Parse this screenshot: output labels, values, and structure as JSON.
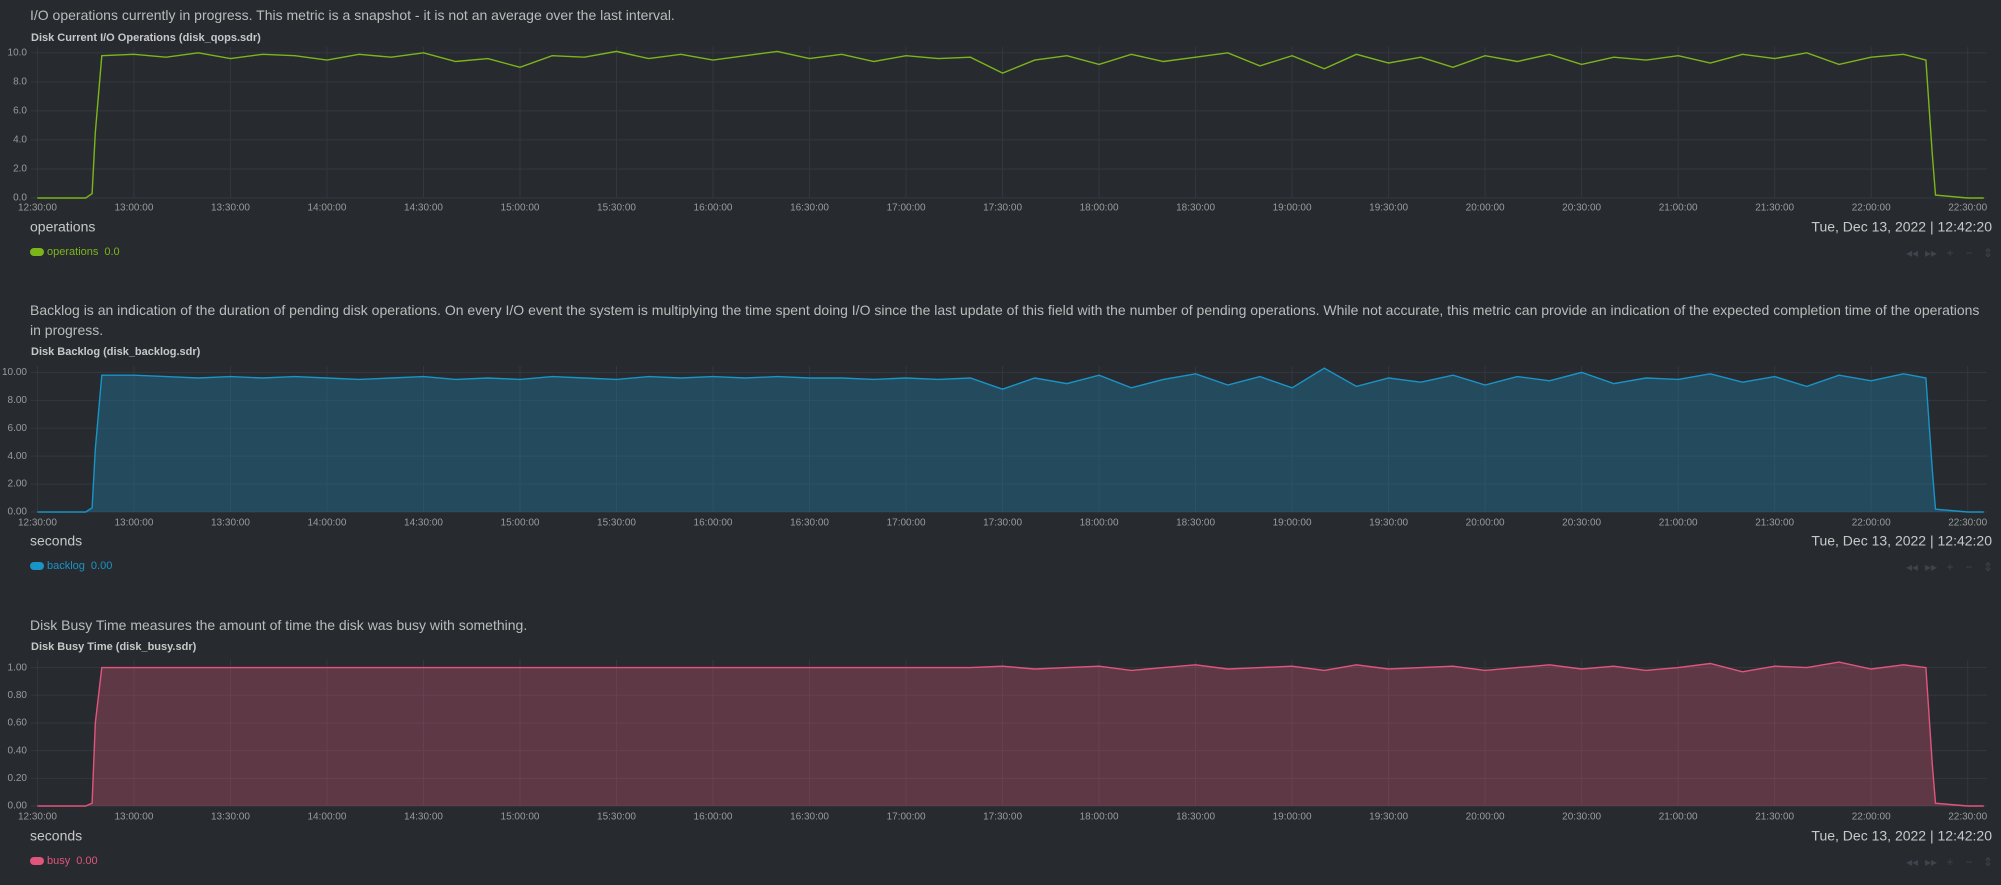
{
  "chart_data": [
    {
      "type": "line",
      "description": "I/O operations currently in progress. This metric is a snapshot - it is not an average over the last interval.",
      "title": "Disk Current I/O Operations (disk_qops.sdr)",
      "units": "operations",
      "timestamp": "Tue, Dec 13, 2022 | 12:42:20",
      "x": [
        "12:30:00",
        "12:40:00",
        "12:45:00",
        "12:47:00",
        "12:48:00",
        "12:50:00",
        "13:00:00",
        "13:10:00",
        "13:20:00",
        "13:30:00",
        "13:40:00",
        "13:50:00",
        "14:00:00",
        "14:10:00",
        "14:20:00",
        "14:30:00",
        "14:40:00",
        "14:50:00",
        "15:00:00",
        "15:10:00",
        "15:20:00",
        "15:30:00",
        "15:40:00",
        "15:50:00",
        "16:00:00",
        "16:10:00",
        "16:20:00",
        "16:30:00",
        "16:40:00",
        "16:50:00",
        "17:00:00",
        "17:10:00",
        "17:20:00",
        "17:30:00",
        "17:40:00",
        "17:50:00",
        "18:00:00",
        "18:10:00",
        "18:20:00",
        "18:30:00",
        "18:40:00",
        "18:50:00",
        "19:00:00",
        "19:10:00",
        "19:20:00",
        "19:30:00",
        "19:40:00",
        "19:50:00",
        "20:00:00",
        "20:10:00",
        "20:20:00",
        "20:30:00",
        "20:40:00",
        "20:50:00",
        "21:00:00",
        "21:10:00",
        "21:20:00",
        "21:30:00",
        "21:40:00",
        "21:50:00",
        "22:00:00",
        "22:10:00",
        "22:17:00",
        "22:19:00",
        "22:20:00",
        "22:30:00",
        "22:35:00"
      ],
      "series": [
        {
          "name": "operations",
          "legend_value": "0.0",
          "color": "#7cb51a",
          "fill": false,
          "values": [
            0,
            0,
            0,
            0.3,
            4.5,
            9.8,
            9.9,
            9.7,
            10.0,
            9.6,
            9.9,
            9.8,
            9.5,
            9.9,
            9.7,
            10.0,
            9.4,
            9.6,
            9.0,
            9.8,
            9.7,
            10.1,
            9.6,
            9.9,
            9.5,
            9.8,
            10.1,
            9.6,
            9.9,
            9.4,
            9.8,
            9.6,
            9.7,
            8.6,
            9.5,
            9.8,
            9.2,
            9.9,
            9.4,
            9.7,
            10.0,
            9.1,
            9.8,
            8.9,
            9.9,
            9.3,
            9.7,
            9.0,
            9.8,
            9.4,
            9.9,
            9.2,
            9.7,
            9.5,
            9.8,
            9.3,
            9.9,
            9.6,
            10.0,
            9.2,
            9.7,
            9.9,
            9.5,
            3,
            0.2,
            0,
            0
          ]
        }
      ],
      "xlim": [
        "12:28:00",
        "22:36:00"
      ],
      "xticks": [
        "12:30:00",
        "13:00:00",
        "13:30:00",
        "14:00:00",
        "14:30:00",
        "15:00:00",
        "15:30:00",
        "16:00:00",
        "16:30:00",
        "17:00:00",
        "17:30:00",
        "18:00:00",
        "18:30:00",
        "19:00:00",
        "19:30:00",
        "20:00:00",
        "20:30:00",
        "21:00:00",
        "21:30:00",
        "22:00:00",
        "22:30:00"
      ],
      "ylim": [
        0,
        10.4
      ],
      "yticks": [
        {
          "value": 0,
          "label": "0.0"
        },
        {
          "value": 2,
          "label": "2.0"
        },
        {
          "value": 4,
          "label": "4.0"
        },
        {
          "value": 6,
          "label": "6.0"
        },
        {
          "value": 8,
          "label": "8.0"
        },
        {
          "value": 10,
          "label": "10.0"
        }
      ],
      "grid": true
    },
    {
      "type": "area",
      "description": "Backlog is an indication of the duration of pending disk operations. On every I/O event the system is multiplying the time spent doing I/O since the last update of this field with the number of pending operations. While not accurate, this metric can provide an indication of the expected completion time of the operations in progress.",
      "title": "Disk Backlog (disk_backlog.sdr)",
      "units": "seconds",
      "timestamp": "Tue, Dec 13, 2022 | 12:42:20",
      "x": [
        "12:30:00",
        "12:40:00",
        "12:45:00",
        "12:47:00",
        "12:48:00",
        "12:50:00",
        "13:00:00",
        "13:10:00",
        "13:20:00",
        "13:30:00",
        "13:40:00",
        "13:50:00",
        "14:00:00",
        "14:10:00",
        "14:20:00",
        "14:30:00",
        "14:40:00",
        "14:50:00",
        "15:00:00",
        "15:10:00",
        "15:20:00",
        "15:30:00",
        "15:40:00",
        "15:50:00",
        "16:00:00",
        "16:10:00",
        "16:20:00",
        "16:30:00",
        "16:40:00",
        "16:50:00",
        "17:00:00",
        "17:10:00",
        "17:20:00",
        "17:30:00",
        "17:40:00",
        "17:50:00",
        "18:00:00",
        "18:10:00",
        "18:20:00",
        "18:30:00",
        "18:40:00",
        "18:50:00",
        "19:00:00",
        "19:10:00",
        "19:20:00",
        "19:30:00",
        "19:40:00",
        "19:50:00",
        "20:00:00",
        "20:10:00",
        "20:20:00",
        "20:30:00",
        "20:40:00",
        "20:50:00",
        "21:00:00",
        "21:10:00",
        "21:20:00",
        "21:30:00",
        "21:40:00",
        "21:50:00",
        "22:00:00",
        "22:10:00",
        "22:17:00",
        "22:19:00",
        "22:20:00",
        "22:30:00",
        "22:35:00"
      ],
      "series": [
        {
          "name": "backlog",
          "legend_value": "0.00",
          "color": "#1a93c6",
          "fill": true,
          "values": [
            0,
            0,
            0,
            0.3,
            4.5,
            9.8,
            9.8,
            9.7,
            9.6,
            9.7,
            9.6,
            9.7,
            9.6,
            9.5,
            9.6,
            9.7,
            9.5,
            9.6,
            9.5,
            9.7,
            9.6,
            9.5,
            9.7,
            9.6,
            9.7,
            9.6,
            9.7,
            9.6,
            9.6,
            9.5,
            9.6,
            9.5,
            9.6,
            8.8,
            9.6,
            9.2,
            9.8,
            8.9,
            9.5,
            9.9,
            9.1,
            9.7,
            8.9,
            10.3,
            9.0,
            9.6,
            9.3,
            9.8,
            9.1,
            9.7,
            9.4,
            10.0,
            9.2,
            9.6,
            9.5,
            9.9,
            9.3,
            9.7,
            9.0,
            9.8,
            9.4,
            9.9,
            9.6,
            3,
            0.2,
            0,
            0
          ]
        }
      ],
      "xlim": [
        "12:28:00",
        "22:36:00"
      ],
      "xticks": [
        "12:30:00",
        "13:00:00",
        "13:30:00",
        "14:00:00",
        "14:30:00",
        "15:00:00",
        "15:30:00",
        "16:00:00",
        "16:30:00",
        "17:00:00",
        "17:30:00",
        "18:00:00",
        "18:30:00",
        "19:00:00",
        "19:30:00",
        "20:00:00",
        "20:30:00",
        "21:00:00",
        "21:30:00",
        "22:00:00",
        "22:30:00"
      ],
      "ylim": [
        0,
        10.46
      ],
      "yticks": [
        {
          "value": 0,
          "label": "0.00"
        },
        {
          "value": 2,
          "label": "2.00"
        },
        {
          "value": 4,
          "label": "4.00"
        },
        {
          "value": 6,
          "label": "6.00"
        },
        {
          "value": 8,
          "label": "8.00"
        },
        {
          "value": 10,
          "label": "10.00"
        }
      ],
      "grid": true
    },
    {
      "type": "area",
      "description": "Disk Busy Time measures the amount of time the disk was busy with something.",
      "title": "Disk Busy Time (disk_busy.sdr)",
      "units": "seconds",
      "timestamp": "Tue, Dec 13, 2022 | 12:42:20",
      "x": [
        "12:30:00",
        "12:40:00",
        "12:45:00",
        "12:47:00",
        "12:48:00",
        "12:50:00",
        "13:00:00",
        "13:10:00",
        "13:20:00",
        "13:30:00",
        "13:40:00",
        "13:50:00",
        "14:00:00",
        "14:10:00",
        "14:20:00",
        "14:30:00",
        "14:40:00",
        "14:50:00",
        "15:00:00",
        "15:10:00",
        "15:20:00",
        "15:30:00",
        "15:40:00",
        "15:50:00",
        "16:00:00",
        "16:10:00",
        "16:20:00",
        "16:30:00",
        "16:40:00",
        "16:50:00",
        "17:00:00",
        "17:10:00",
        "17:20:00",
        "17:30:00",
        "17:40:00",
        "17:50:00",
        "18:00:00",
        "18:10:00",
        "18:20:00",
        "18:30:00",
        "18:40:00",
        "18:50:00",
        "19:00:00",
        "19:10:00",
        "19:20:00",
        "19:30:00",
        "19:40:00",
        "19:50:00",
        "20:00:00",
        "20:10:00",
        "20:20:00",
        "20:30:00",
        "20:40:00",
        "20:50:00",
        "21:00:00",
        "21:10:00",
        "21:20:00",
        "21:30:00",
        "21:40:00",
        "21:50:00",
        "22:00:00",
        "22:10:00",
        "22:17:00",
        "22:19:00",
        "22:20:00",
        "22:30:00",
        "22:35:00"
      ],
      "series": [
        {
          "name": "busy",
          "legend_value": "0.00",
          "color": "#e0557b",
          "fill": true,
          "values": [
            0,
            0,
            0,
            0.02,
            0.6,
            1.0,
            1.0,
            1.0,
            1.0,
            1.0,
            1.0,
            1.0,
            1.0,
            1.0,
            1.0,
            1.0,
            1.0,
            1.0,
            1.0,
            1.0,
            1.0,
            1.0,
            1.0,
            1.0,
            1.0,
            1.0,
            1.0,
            1.0,
            1.0,
            1.0,
            1.0,
            1.0,
            1.0,
            1.01,
            0.99,
            1.0,
            1.01,
            0.98,
            1.0,
            1.02,
            0.99,
            1.0,
            1.01,
            0.98,
            1.02,
            0.99,
            1.0,
            1.01,
            0.98,
            1.0,
            1.02,
            0.99,
            1.01,
            0.98,
            1.0,
            1.03,
            0.97,
            1.01,
            1.0,
            1.04,
            0.99,
            1.02,
            1.0,
            0.3,
            0.02,
            0,
            0
          ]
        }
      ],
      "xlim": [
        "12:28:00",
        "22:36:00"
      ],
      "xticks": [
        "12:30:00",
        "13:00:00",
        "13:30:00",
        "14:00:00",
        "14:30:00",
        "15:00:00",
        "15:30:00",
        "16:00:00",
        "16:30:00",
        "17:00:00",
        "17:30:00",
        "18:00:00",
        "18:30:00",
        "19:00:00",
        "19:30:00",
        "20:00:00",
        "20:30:00",
        "21:00:00",
        "21:30:00",
        "22:00:00",
        "22:30:00"
      ],
      "ylim": [
        0,
        1.055
      ],
      "yticks": [
        {
          "value": 0,
          "label": "0.00"
        },
        {
          "value": 0.2,
          "label": "0.20"
        },
        {
          "value": 0.4,
          "label": "0.40"
        },
        {
          "value": 0.6,
          "label": "0.60"
        },
        {
          "value": 0.8,
          "label": "0.80"
        },
        {
          "value": 1,
          "label": "1.00"
        }
      ],
      "grid": true
    }
  ]
}
